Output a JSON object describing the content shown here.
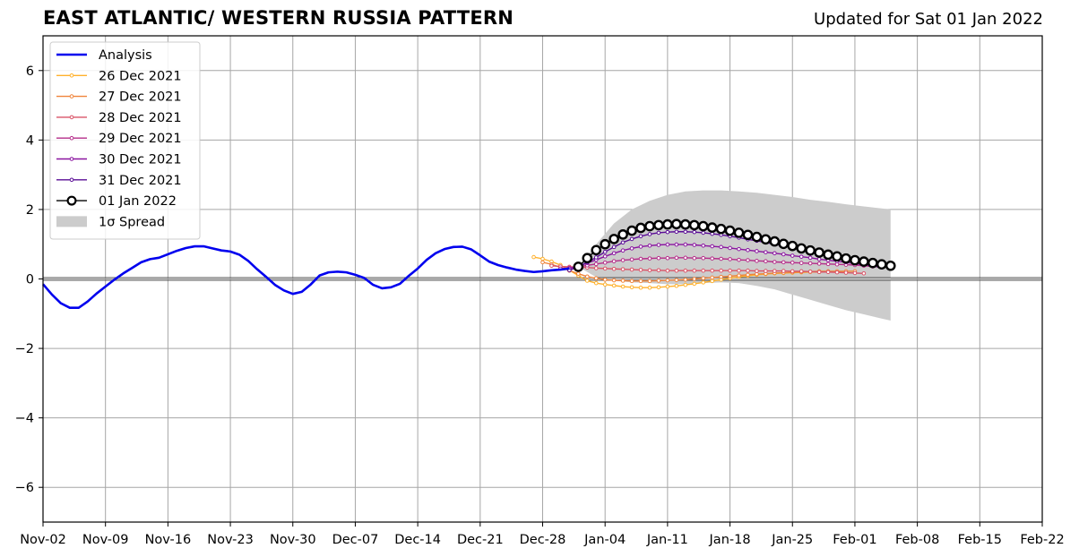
{
  "header": {
    "title": "EAST ATLANTIC/ WESTERN RUSSIA PATTERN",
    "updated": "Updated for Sat 01 Jan 2022"
  },
  "chart_data": {
    "type": "line",
    "title": "EAST ATLANTIC/ WESTERN RUSSIA PATTERN",
    "xlabel": "",
    "ylabel": "",
    "grid": true,
    "legend_position": "top-left",
    "x_unit": "days since Nov-02 2021",
    "xlim": [
      0,
      112
    ],
    "ylim": [
      -7,
      7
    ],
    "x_ticks": [
      0,
      7,
      14,
      21,
      28,
      35,
      42,
      49,
      56,
      63,
      70,
      77,
      84,
      91,
      98,
      105,
      112
    ],
    "x_tick_labels": [
      "Nov-02",
      "Nov-09",
      "Nov-16",
      "Nov-23",
      "Nov-30",
      "Dec-07",
      "Dec-14",
      "Dec-21",
      "Dec-28",
      "Jan-04",
      "Jan-11",
      "Jan-18",
      "Jan-25",
      "Feb-01",
      "Feb-08",
      "Feb-15",
      "Feb-22"
    ],
    "y_ticks": [
      -6,
      -4,
      -2,
      0,
      2,
      4,
      6
    ],
    "y_tick_labels": [
      "−6",
      "−4",
      "−2",
      "0",
      "2",
      "4",
      "6"
    ],
    "legend": [
      "Analysis",
      "26 Dec 2021",
      "27 Dec 2021",
      "28 Dec 2021",
      "29 Dec 2021",
      "30 Dec 2021",
      "31 Dec 2021",
      "01 Jan 2022",
      "1σ Spread"
    ],
    "analysis": {
      "name": "Analysis",
      "color": "#0000ee",
      "x": [
        0,
        1,
        2,
        3,
        4,
        5,
        6,
        7,
        8,
        9,
        10,
        11,
        12,
        13,
        14,
        15,
        16,
        17,
        18,
        19,
        20,
        21,
        22,
        23,
        24,
        25,
        26,
        27,
        28,
        29,
        30,
        31,
        32,
        33,
        34,
        35,
        36,
        37,
        38,
        39,
        40,
        41,
        42,
        43,
        44,
        45,
        46,
        47,
        48,
        49,
        50,
        51,
        52,
        53,
        54,
        55,
        56,
        57,
        58,
        59
      ],
      "values": [
        -0.15,
        -0.45,
        -0.7,
        -0.83,
        -0.83,
        -0.65,
        -0.42,
        -0.22,
        -0.02,
        0.16,
        0.32,
        0.48,
        0.57,
        0.61,
        0.71,
        0.81,
        0.89,
        0.94,
        0.94,
        0.88,
        0.82,
        0.79,
        0.7,
        0.52,
        0.28,
        0.06,
        -0.17,
        -0.33,
        -0.43,
        -0.37,
        -0.16,
        0.1,
        0.19,
        0.21,
        0.19,
        0.12,
        0.03,
        -0.17,
        -0.27,
        -0.24,
        -0.14,
        0.09,
        0.3,
        0.55,
        0.74,
        0.86,
        0.92,
        0.93,
        0.85,
        0.68,
        0.5,
        0.4,
        0.33,
        0.27,
        0.23,
        0.2,
        0.22,
        0.25,
        0.27,
        0.3
      ]
    },
    "forecasts": [
      {
        "name": "26 Dec 2021",
        "color": "#ffb12c",
        "start": 55,
        "end": 90,
        "values": [
          0.63,
          0.58,
          0.5,
          0.4,
          0.25,
          0.1,
          -0.05,
          -0.12,
          -0.16,
          -0.19,
          -0.22,
          -0.24,
          -0.25,
          -0.25,
          -0.24,
          -0.22,
          -0.2,
          -0.17,
          -0.14,
          -0.1,
          -0.06,
          -0.02,
          0.02,
          0.06,
          0.09,
          0.12,
          0.14,
          0.16,
          0.17,
          0.18,
          0.19,
          0.2,
          0.2,
          0.21,
          0.21,
          0.21
        ]
      },
      {
        "name": "27 Dec 2021",
        "color": "#f0843a",
        "start": 56,
        "end": 91,
        "values": [
          0.48,
          0.42,
          0.33,
          0.24,
          0.15,
          0.07,
          0.02,
          -0.02,
          -0.04,
          -0.05,
          -0.06,
          -0.06,
          -0.06,
          -0.05,
          -0.04,
          -0.03,
          -0.02,
          0.0,
          0.02,
          0.04,
          0.06,
          0.08,
          0.1,
          0.12,
          0.14,
          0.15,
          0.17,
          0.18,
          0.19,
          0.2,
          0.21,
          0.22,
          0.22,
          0.22,
          0.22,
          0.22
        ]
      },
      {
        "name": "28 Dec 2021",
        "color": "#d95468",
        "start": 57,
        "end": 92,
        "values": [
          0.38,
          0.36,
          0.35,
          0.34,
          0.33,
          0.31,
          0.3,
          0.29,
          0.28,
          0.27,
          0.26,
          0.25,
          0.25,
          0.24,
          0.24,
          0.24,
          0.24,
          0.24,
          0.24,
          0.24,
          0.24,
          0.24,
          0.24,
          0.23,
          0.23,
          0.23,
          0.23,
          0.22,
          0.22,
          0.21,
          0.2,
          0.2,
          0.19,
          0.18,
          0.17,
          0.16
        ]
      },
      {
        "name": "29 Dec 2021",
        "color": "#b52d8a",
        "start": 58,
        "end": 93,
        "values": [
          0.3,
          0.32,
          0.35,
          0.39,
          0.43,
          0.47,
          0.51,
          0.54,
          0.56,
          0.58,
          0.59,
          0.6,
          0.6,
          0.61,
          0.61,
          0.6,
          0.6,
          0.59,
          0.58,
          0.57,
          0.55,
          0.54,
          0.52,
          0.51,
          0.49,
          0.48,
          0.47,
          0.46,
          0.45,
          0.44,
          0.43,
          0.42,
          0.41,
          0.4,
          0.38,
          0.36
        ]
      },
      {
        "name": "30 Dec 2021",
        "color": "#8a14a0",
        "start": 59,
        "end": 94,
        "values": [
          0.3,
          0.37,
          0.46,
          0.55,
          0.65,
          0.74,
          0.82,
          0.88,
          0.93,
          0.96,
          0.98,
          0.99,
          0.99,
          0.99,
          0.98,
          0.96,
          0.94,
          0.92,
          0.89,
          0.86,
          0.83,
          0.8,
          0.77,
          0.74,
          0.71,
          0.67,
          0.64,
          0.61,
          0.57,
          0.54,
          0.51,
          0.48,
          0.44,
          0.41,
          0.37,
          0.33
        ]
      },
      {
        "name": "31 Dec 2021",
        "color": "#5a0c96",
        "start": 59,
        "end": 94,
        "values": [
          0.25,
          0.35,
          0.48,
          0.62,
          0.78,
          0.92,
          1.05,
          1.15,
          1.23,
          1.29,
          1.33,
          1.35,
          1.36,
          1.36,
          1.35,
          1.33,
          1.3,
          1.27,
          1.23,
          1.19,
          1.14,
          1.1,
          1.05,
          1.0,
          0.95,
          0.9,
          0.84,
          0.79,
          0.74,
          0.69,
          0.64,
          0.59,
          0.54,
          0.5,
          0.46,
          0.42
        ]
      }
    ],
    "current": {
      "name": "01 Jan 2022",
      "color": "#000000",
      "start": 60,
      "end": 95,
      "values": [
        0.35,
        0.6,
        0.83,
        1.0,
        1.15,
        1.28,
        1.39,
        1.47,
        1.52,
        1.55,
        1.57,
        1.58,
        1.57,
        1.55,
        1.52,
        1.48,
        1.44,
        1.39,
        1.33,
        1.27,
        1.21,
        1.14,
        1.08,
        1.01,
        0.95,
        0.88,
        0.82,
        0.76,
        0.7,
        0.65,
        0.59,
        0.54,
        0.5,
        0.46,
        0.42,
        0.38
      ]
    },
    "spread": {
      "name": "1σ Spread",
      "color": "#cccccc",
      "x": [
        60,
        62,
        64,
        66,
        68,
        70,
        72,
        74,
        76,
        78,
        80,
        82,
        84,
        86,
        88,
        90,
        92,
        94,
        95
      ],
      "upper": [
        0.35,
        1.0,
        1.6,
        2.0,
        2.25,
        2.42,
        2.52,
        2.55,
        2.55,
        2.52,
        2.48,
        2.42,
        2.36,
        2.28,
        2.22,
        2.15,
        2.09,
        2.03,
        2.0
      ],
      "lower": [
        0.35,
        0.05,
        -0.05,
        -0.1,
        -0.12,
        -0.15,
        -0.15,
        -0.12,
        -0.1,
        -0.12,
        -0.2,
        -0.3,
        -0.45,
        -0.6,
        -0.75,
        -0.9,
        -1.02,
        -1.14,
        -1.2
      ]
    }
  }
}
